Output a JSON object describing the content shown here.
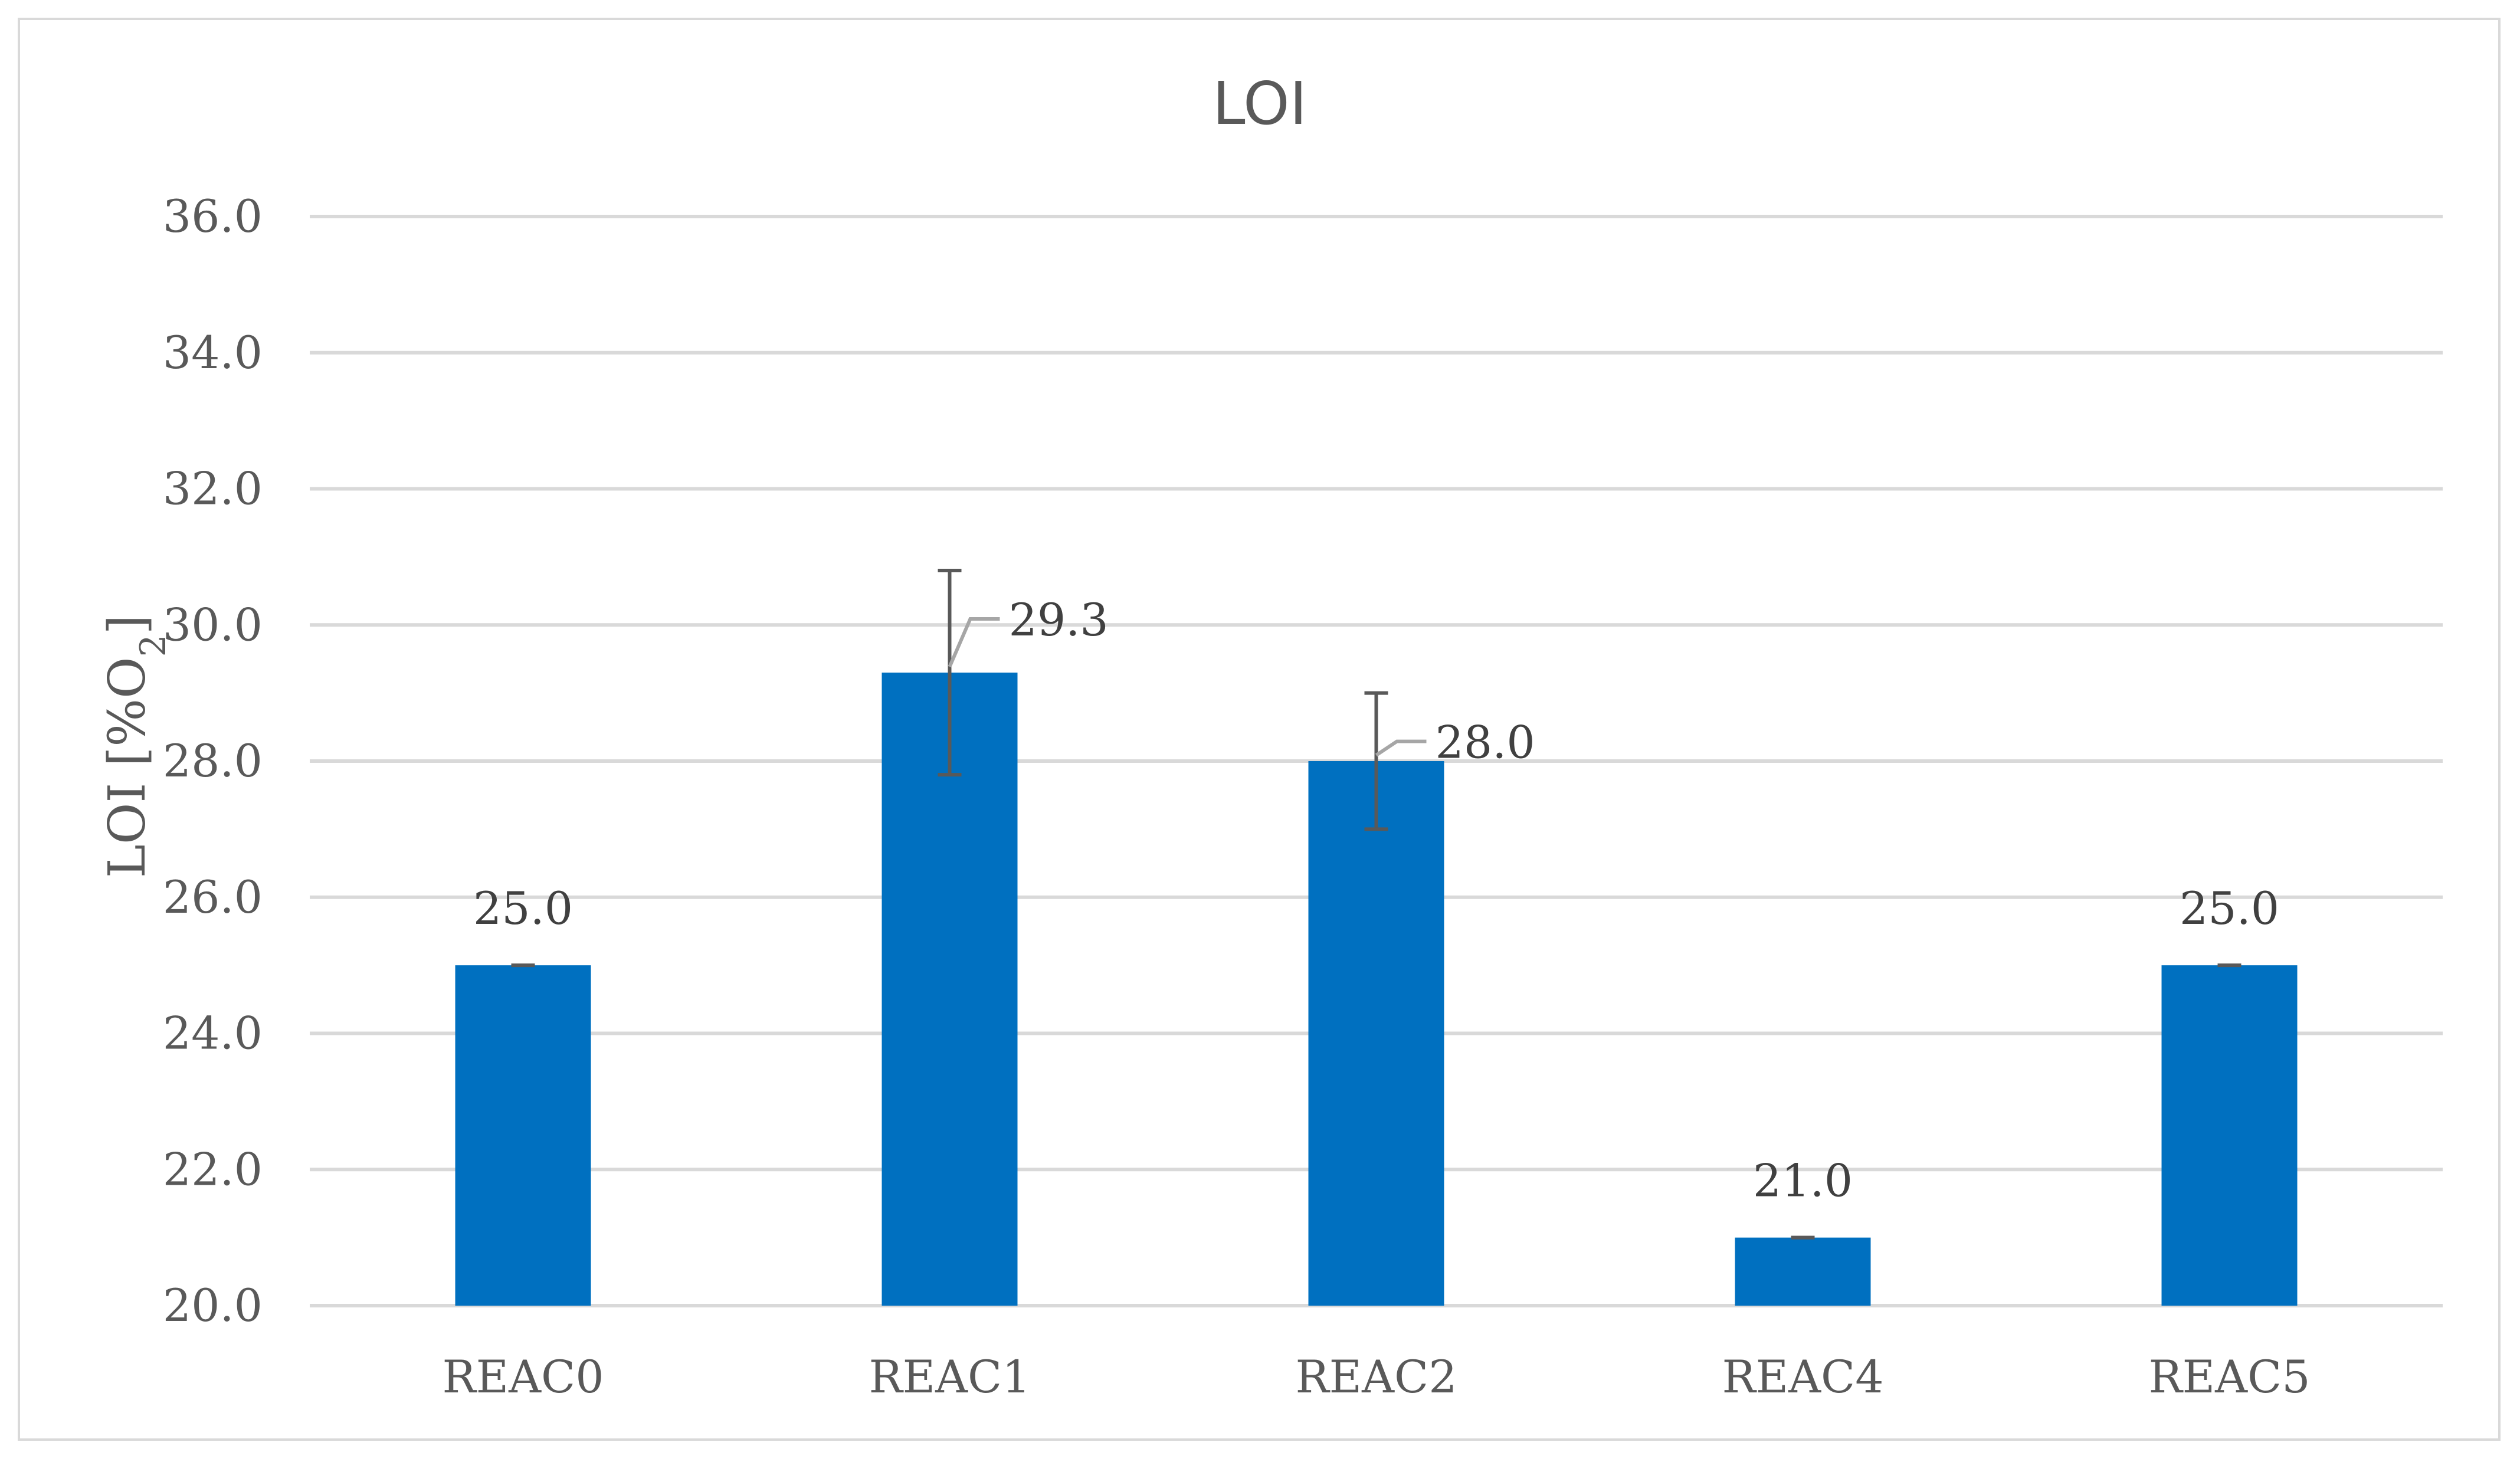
{
  "chart_data": {
    "type": "bar",
    "title": "LOI",
    "xlabel": "",
    "ylabel": "LOI  [%O",
    "ylabel_subscript": "2",
    "ylabel_close": "]",
    "categories": [
      "REAC0",
      "REAC1",
      "REAC2",
      "REAC4",
      "REAC5"
    ],
    "values": [
      25.0,
      29.3,
      28.0,
      21.0,
      25.0
    ],
    "error_bars": [
      0.0,
      1.5,
      1.0,
      0.0,
      0.0
    ],
    "data_labels": [
      "25.0",
      "29.3",
      "28.0",
      "21.0",
      "25.0"
    ],
    "ylim": [
      20.0,
      36.0
    ],
    "yticks": [
      20.0,
      22.0,
      24.0,
      26.0,
      28.0,
      30.0,
      32.0,
      34.0,
      36.0
    ],
    "ytick_labels": [
      "20.0",
      "22.0",
      "24.0",
      "26.0",
      "28.0",
      "30.0",
      "32.0",
      "34.0",
      "36.0"
    ],
    "grid": true,
    "legend": "none",
    "colors": {
      "bar": "#0070c0",
      "grid": "#d9d9d9",
      "error_bar": "#595959",
      "leader_line": "#a6a6a6",
      "text": "#595959"
    }
  }
}
